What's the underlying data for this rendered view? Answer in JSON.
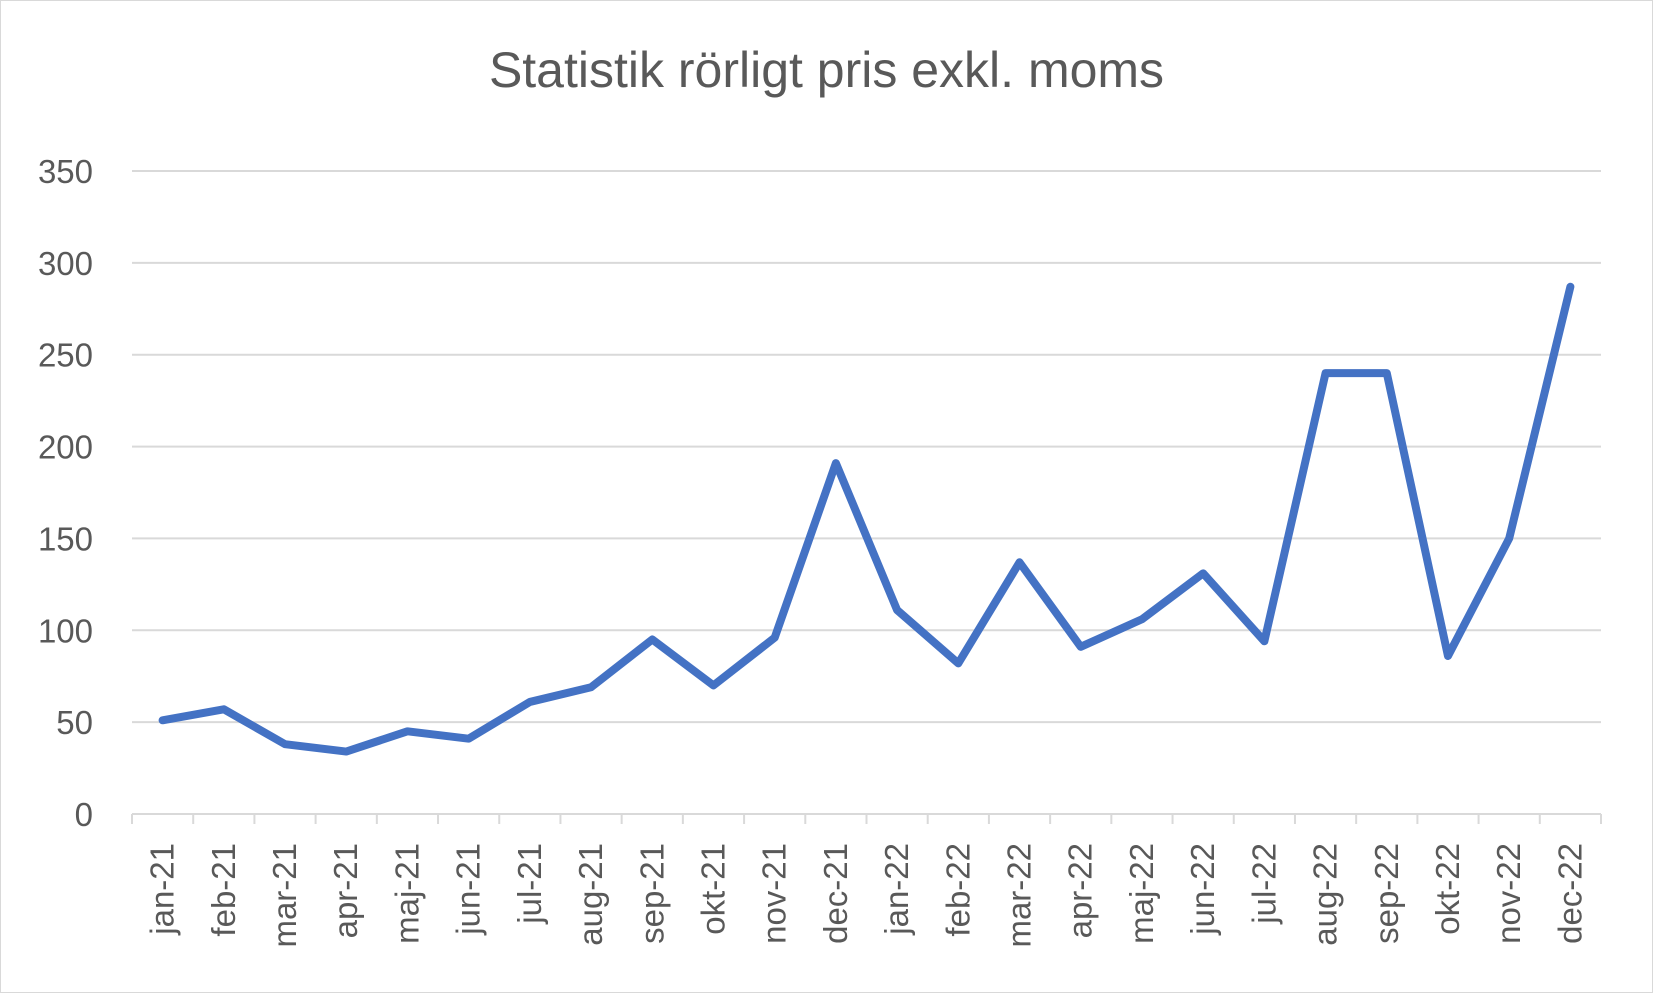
{
  "chart_data": {
    "type": "line",
    "title": "Statistik rörligt pris exkl. moms",
    "xlabel": "",
    "ylabel": "",
    "ylim": [
      0,
      350
    ],
    "yticks": [
      "0",
      "50",
      "100",
      "150",
      "200",
      "250",
      "300",
      "350"
    ],
    "categories": [
      "jan-21",
      "feb-21",
      "mar-21",
      "apr-21",
      "maj-21",
      "jun-21",
      "jul-21",
      "aug-21",
      "sep-21",
      "okt-21",
      "nov-21",
      "dec-21",
      "jan-22",
      "feb-22",
      "mar-22",
      "apr-22",
      "maj-22",
      "jun-22",
      "jul-22",
      "aug-22",
      "sep-22",
      "okt-22",
      "nov-22",
      "dec-22"
    ],
    "series": [
      {
        "values": [
          51,
          57,
          38,
          34,
          45,
          41,
          61,
          69,
          95,
          70,
          96,
          191,
          111,
          82,
          137,
          91,
          106,
          131,
          94,
          240,
          240,
          86,
          150,
          287
        ]
      }
    ],
    "grid": true,
    "legend": "none",
    "line_color": "#4472c4",
    "grid_color": "#d9d9d9"
  }
}
